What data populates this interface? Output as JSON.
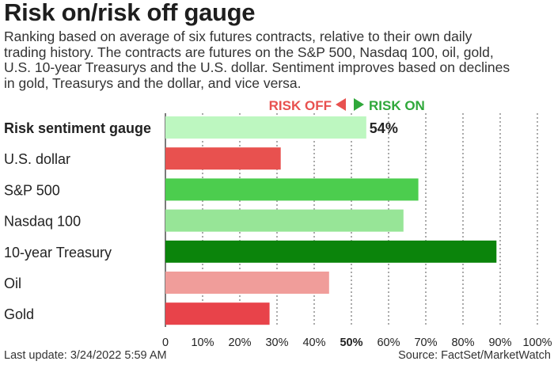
{
  "chart_data": {
    "type": "bar",
    "orientation": "horizontal",
    "title": "Risk on/risk off gauge",
    "subtitle_lines": [
      "Ranking based on average of six futures contracts, relative to their own daily",
      "trading history. The contracts are futures on the S&P 500, Nasdaq 100, oil, gold,",
      "U.S. 10-year Treasurys and the U.S. dollar. Sentiment improves based on declines",
      "in gold, Treasurys and the dollar, and vice versa."
    ],
    "legend": {
      "risk_off": "RISK OFF",
      "risk_on": "RISK ON",
      "placement": "top-center"
    },
    "categories": [
      "Risk sentiment gauge",
      "U.S. dollar",
      "S&P 500",
      "Nasdaq 100",
      "10-year Treasury",
      "Oil",
      "Gold"
    ],
    "values": [
      54,
      31,
      68,
      64,
      89,
      44,
      28
    ],
    "colors": [
      "#bdf7c0",
      "#e8514f",
      "#4ccd4e",
      "#97e597",
      "#0b840b",
      "#f09d9a",
      "#e8434a"
    ],
    "value_labels": [
      "54%",
      "",
      "",
      "",
      "",
      "",
      ""
    ],
    "xlim": [
      0,
      100
    ],
    "xticks": [
      "0",
      "10%",
      "20%",
      "30%",
      "40%",
      "50%",
      "60%",
      "70%",
      "80%",
      "90%",
      "100%"
    ],
    "highlight_tick": "50%",
    "grid": "vertical-dotted"
  },
  "footer": {
    "last_update": "Last update: 3/24/2022 5:59 AM",
    "source": "Source: FactSet/MarketWatch"
  },
  "arrow_colors": {
    "left": "#e8514f",
    "right": "#2fa83a"
  }
}
